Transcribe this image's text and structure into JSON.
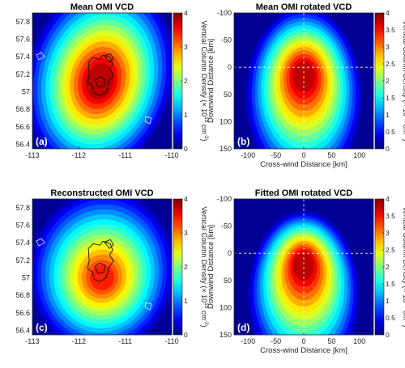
{
  "colors": {
    "accent": "#ffffff"
  },
  "colorbar": {
    "label_pre": "Vertical Column Density (× 10",
    "label_exp": "15",
    "label_mid": " cm",
    "label_exp2": "-2",
    "label_post": ")",
    "colormap": "jet"
  },
  "chart_data": [
    {
      "type": "heatmap",
      "title": "Mean OMI VCD",
      "panel_label": "(a)",
      "xlim": [
        -113,
        -110
      ],
      "ylim": [
        56.35,
        57.9
      ],
      "xticks": [
        "-113",
        "-112",
        "-111",
        "-110"
      ],
      "yticks": [
        "56.4",
        "56.6",
        "56.8",
        "57",
        "57.2",
        "57.4",
        "57.6",
        "57.8"
      ],
      "xtick_values": [
        -113,
        -112,
        -111,
        -110
      ],
      "ytick_values": [
        56.4,
        56.6,
        56.8,
        57.0,
        57.2,
        57.4,
        57.6,
        57.8
      ],
      "colorbar_ticks": [
        "0",
        "1",
        "2",
        "3",
        "4"
      ],
      "colorbar_tick_values": [
        0,
        1,
        2,
        3,
        4
      ],
      "clim": [
        0,
        4
      ],
      "peak_location": [
        -111.55,
        57.12
      ],
      "peak_value": 4.0,
      "has_outlines": true
    },
    {
      "type": "heatmap",
      "title": "Mean OMI rotated VCD",
      "panel_label": "(b)",
      "xlabel": "Cross-wind Distance [km]",
      "ylabel": "Downwind Distance [km]",
      "xlim": [
        -125,
        125
      ],
      "ylim": [
        150,
        -100
      ],
      "xticks": [
        "-100",
        "-50",
        "0",
        "50",
        "100"
      ],
      "yticks": [
        "-100",
        "-50",
        "0",
        "50",
        "100",
        "150"
      ],
      "xtick_values": [
        -100,
        -50,
        0,
        50,
        100
      ],
      "ytick_values": [
        -100,
        -50,
        0,
        50,
        100,
        150
      ],
      "colorbar_ticks": [
        "0",
        "0.5",
        "1",
        "1.5",
        "2",
        "2.5",
        "3",
        "3.5",
        "4"
      ],
      "colorbar_tick_values": [
        0,
        0.5,
        1,
        1.5,
        2,
        2.5,
        3,
        3.5,
        4
      ],
      "clim": [
        0,
        4
      ],
      "peak_location": [
        0,
        15
      ],
      "peak_value": 4.0,
      "crosshair": [
        0,
        0
      ]
    },
    {
      "type": "heatmap",
      "title": "Reconstructed OMI VCD",
      "panel_label": "(c)",
      "xlim": [
        -113,
        -110
      ],
      "ylim": [
        56.35,
        57.9
      ],
      "xticks": [
        "-113",
        "-112",
        "-111",
        "-110"
      ],
      "yticks": [
        "56.4",
        "56.6",
        "56.8",
        "57",
        "57.2",
        "57.4",
        "57.6",
        "57.8"
      ],
      "xtick_values": [
        -113,
        -112,
        -111,
        -110
      ],
      "ytick_values": [
        56.4,
        56.6,
        56.8,
        57.0,
        57.2,
        57.4,
        57.6,
        57.8
      ],
      "colorbar_ticks": [
        "0",
        "1",
        "2",
        "3",
        "4"
      ],
      "colorbar_tick_values": [
        0,
        1,
        2,
        3,
        4
      ],
      "clim": [
        0,
        4
      ],
      "peak_location": [
        -111.5,
        57.0
      ],
      "peak_value": 3.6,
      "has_outlines": true
    },
    {
      "type": "heatmap",
      "title": "Fitted OMI rotated VCD",
      "panel_label": "(d)",
      "xlabel": "Cross-wind Distance [km]",
      "ylabel": "Downwind Distance [km]",
      "xlim": [
        -125,
        125
      ],
      "ylim": [
        150,
        -100
      ],
      "xticks": [
        "-100",
        "-50",
        "0",
        "50",
        "100"
      ],
      "yticks": [
        "-100",
        "-50",
        "0",
        "50",
        "100",
        "150"
      ],
      "xtick_values": [
        -100,
        -50,
        0,
        50,
        100
      ],
      "ytick_values": [
        -100,
        -50,
        0,
        50,
        100,
        150
      ],
      "colorbar_ticks": [
        "0",
        "0.5",
        "1",
        "1.5",
        "2",
        "2.5",
        "3",
        "3.5",
        "4"
      ],
      "colorbar_tick_values": [
        0,
        0.5,
        1,
        1.5,
        2,
        2.5,
        3,
        3.5,
        4
      ],
      "clim": [
        0,
        4
      ],
      "peak_location": [
        0,
        20
      ],
      "peak_value": 4.0,
      "crosshair": [
        0,
        0
      ]
    }
  ]
}
